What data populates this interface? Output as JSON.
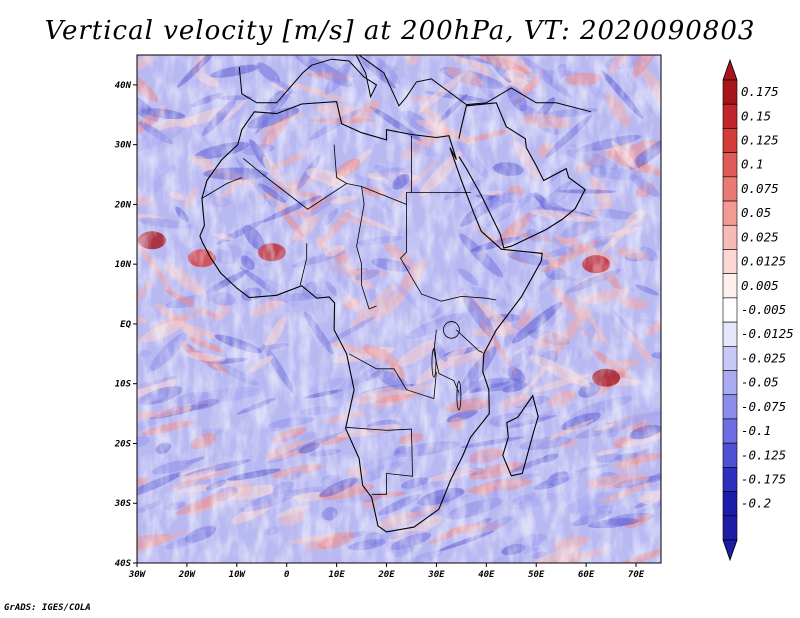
{
  "title": "Vertical velocity [m/s] at 200hPa, VT: 2020090803",
  "footer": "GrADS: IGES/COLA",
  "map": {
    "variable": "Vertical velocity",
    "units": "m/s",
    "level": "200hPa",
    "valid_time": "2020090803",
    "lon_range": [
      -30,
      75
    ],
    "lat_range": [
      -40,
      45
    ],
    "lat_labels": [
      {
        "value": 40,
        "text": "40N"
      },
      {
        "value": 30,
        "text": "30N"
      },
      {
        "value": 20,
        "text": "20N"
      },
      {
        "value": 10,
        "text": "10N"
      },
      {
        "value": 0,
        "text": "EQ"
      },
      {
        "value": -10,
        "text": "10S"
      },
      {
        "value": -20,
        "text": "20S"
      },
      {
        "value": -30,
        "text": "30S"
      },
      {
        "value": -40,
        "text": "40S"
      }
    ],
    "lon_labels": [
      {
        "value": -30,
        "text": "30W"
      },
      {
        "value": -20,
        "text": "20W"
      },
      {
        "value": -10,
        "text": "10W"
      },
      {
        "value": 0,
        "text": "0"
      },
      {
        "value": 10,
        "text": "10E"
      },
      {
        "value": 20,
        "text": "20E"
      },
      {
        "value": 30,
        "text": "30E"
      },
      {
        "value": 40,
        "text": "40E"
      },
      {
        "value": 50,
        "text": "50E"
      },
      {
        "value": 60,
        "text": "60E"
      },
      {
        "value": 70,
        "text": "70E"
      }
    ]
  },
  "colorbar": {
    "levels": [
      {
        "label": "0.175",
        "color": "#a8141c"
      },
      {
        "label": "0.15",
        "color": "#c0262c"
      },
      {
        "label": "0.125",
        "color": "#d43c3c"
      },
      {
        "label": "0.1",
        "color": "#e05a58"
      },
      {
        "label": "0.075",
        "color": "#ea7a76"
      },
      {
        "label": "0.05",
        "color": "#f29a94"
      },
      {
        "label": "0.025",
        "color": "#f8bab4"
      },
      {
        "label": "0.0125",
        "color": "#fcd8d4"
      },
      {
        "label": "0.005",
        "color": "#fff0ee"
      },
      {
        "label": "-0.005",
        "color": "#ffffff"
      },
      {
        "label": "-0.0125",
        "color": "#e6e6fc"
      },
      {
        "label": "-0.025",
        "color": "#c8c8f6"
      },
      {
        "label": "-0.05",
        "color": "#aaaaf0"
      },
      {
        "label": "-0.075",
        "color": "#8c8cea"
      },
      {
        "label": "-0.1",
        "color": "#6e6ee2"
      },
      {
        "label": "-0.125",
        "color": "#5050d6"
      },
      {
        "label": "-0.175",
        "color": "#3030c0"
      },
      {
        "label": "-0.2",
        "color": "#1c1ca8"
      }
    ],
    "top_cap_color": "#a8141c",
    "bottom_cap_color": "#1c1ca8"
  }
}
